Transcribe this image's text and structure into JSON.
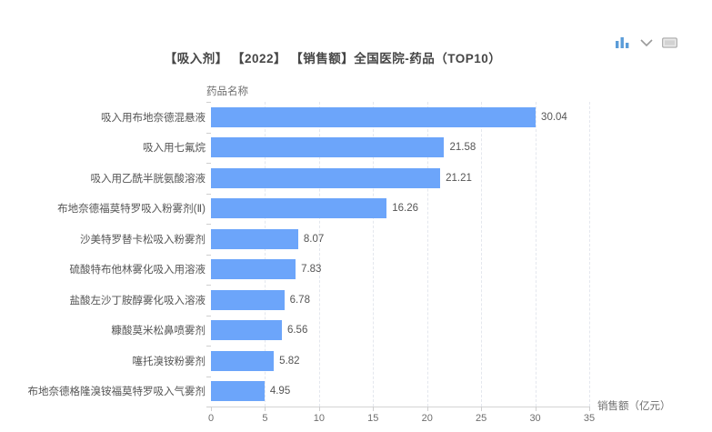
{
  "title": "【吸入剂】 【2022】 【销售额】全国医院-药品（TOP10）",
  "toolbox": {
    "icons": [
      {
        "name": "bar-chart-icon"
      },
      {
        "name": "chevron-down-icon"
      },
      {
        "name": "image-icon"
      }
    ]
  },
  "chart_data": {
    "type": "bar",
    "orientation": "horizontal",
    "title": "【吸入剂】 【2022】 【销售额】全国医院-药品（TOP10）",
    "ylabel": "药品名称",
    "xlabel": "销售额（亿元）",
    "categories": [
      "吸入用布地奈德混悬液",
      "吸入用七氟烷",
      "吸入用乙酰半胱氨酸溶液",
      "布地奈德福莫特罗吸入粉雾剂(Ⅱ)",
      "沙美特罗替卡松吸入粉雾剂",
      "硫酸特布他林雾化吸入用溶液",
      "盐酸左沙丁胺醇雾化吸入溶液",
      "糠酸莫米松鼻喷雾剂",
      "噻托溴铵粉雾剂",
      "布地奈德格隆溴铵福莫特罗吸入气雾剂"
    ],
    "values": [
      30.04,
      21.58,
      21.21,
      16.26,
      8.07,
      7.83,
      6.78,
      6.56,
      5.82,
      4.95
    ],
    "value_labels": [
      "30.04",
      "21.58",
      "21.21",
      "16.26",
      "8.07",
      "7.83",
      "6.78",
      "6.56",
      "5.82",
      "4.95"
    ],
    "xlim": [
      0,
      35
    ],
    "xticks": [
      0,
      5,
      10,
      15,
      20,
      25,
      30,
      35
    ],
    "bar_color": "#6CA5FA",
    "grid": true,
    "legend": false
  }
}
